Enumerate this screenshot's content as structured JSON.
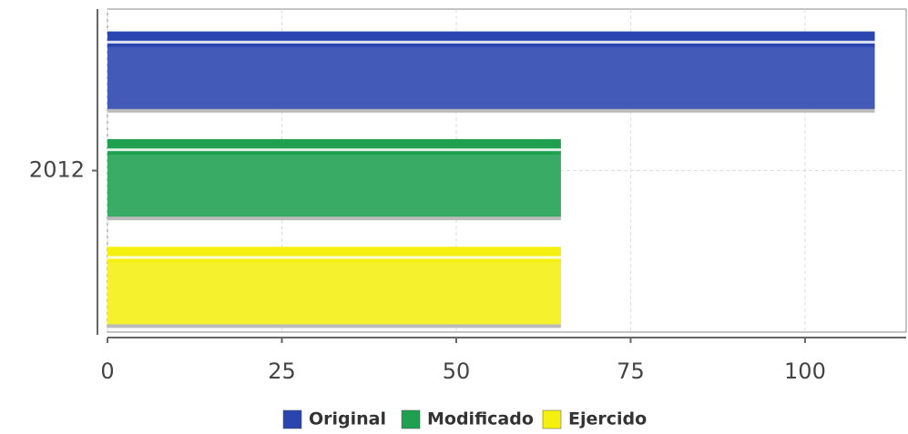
{
  "chart_data": {
    "type": "bar",
    "orientation": "horizontal",
    "categories": [
      "2012"
    ],
    "series": [
      {
        "name": "Original",
        "color": "#2a44b0",
        "values": [
          110
        ]
      },
      {
        "name": "Modificado",
        "color": "#1fa050",
        "values": [
          65
        ]
      },
      {
        "name": "Ejercido",
        "color": "#f5f010",
        "values": [
          65
        ]
      }
    ],
    "xlim": [
      0,
      114.5
    ],
    "xticks": [
      0,
      25,
      50,
      75,
      100
    ],
    "grid": true,
    "legend": "bottom"
  }
}
